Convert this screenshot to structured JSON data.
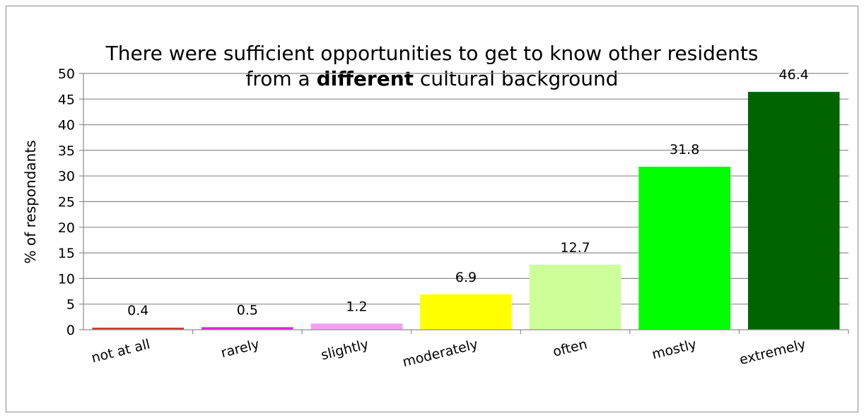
{
  "chart_data": {
    "type": "bar",
    "title_line1": "There were sufficient opportunities to get to know other residents",
    "title_line2_prefix": "from a",
    "title_line2_bold": "different",
    "title_line2_suffix": "cultural background",
    "ylabel": "% of respondants",
    "xlabel": "",
    "ylim": [
      0,
      50
    ],
    "yticks": [
      0,
      5,
      10,
      15,
      20,
      25,
      30,
      35,
      40,
      45,
      50
    ],
    "grid": true,
    "categories": [
      "not at all",
      "rarely",
      "slightly",
      "moderately",
      "often",
      "mostly",
      "extremely"
    ],
    "values": [
      0.4,
      0.5,
      1.2,
      6.9,
      12.7,
      31.8,
      46.4
    ],
    "value_labels": [
      "0.4",
      "0.5",
      "1.2",
      "6.9",
      "12.7",
      "31.8",
      "46.4"
    ],
    "colors": [
      "#c0392b",
      "#e020e0",
      "#f3a0f3",
      "#ffff00",
      "#ccff99",
      "#00ff00",
      "#006400"
    ]
  }
}
